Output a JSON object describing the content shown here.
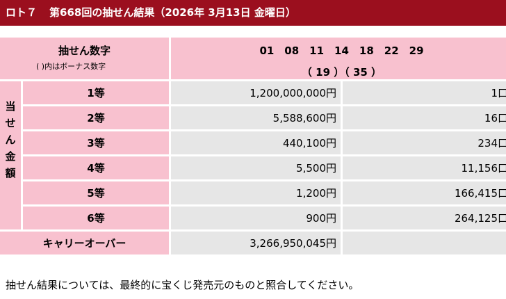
{
  "header": {
    "game": "ロト７",
    "title": "第668回の抽せん結果（2026年 3月13日 金曜日）"
  },
  "numbers": {
    "label": "抽せん数字",
    "note": "( )内はボーナス数字",
    "main": "01　08　11　14　18　22　29",
    "bonus": "（ 19 ）（ 35 ）"
  },
  "prize_side_label": [
    "当",
    "せ",
    "ん",
    "金",
    "額"
  ],
  "prizes": [
    {
      "grade": "1等",
      "amount": "1,200,000,000円",
      "count": "1口"
    },
    {
      "grade": "2等",
      "amount": "5,588,600円",
      "count": "16口"
    },
    {
      "grade": "3等",
      "amount": "440,100円",
      "count": "234口"
    },
    {
      "grade": "4等",
      "amount": "5,500円",
      "count": "11,156口"
    },
    {
      "grade": "5等",
      "amount": "1,200円",
      "count": "166,415口"
    },
    {
      "grade": "6等",
      "amount": "900円",
      "count": "264,125口"
    }
  ],
  "carryover": {
    "label": "キャリーオーバー",
    "amount": "3,266,950,045円"
  },
  "footer": {
    "note": "抽せん結果については、最終的に宝くじ発売元のものと照合してください。"
  },
  "colors": {
    "header_bg": "#9b0f1e",
    "label_bg": "#f8c1cf",
    "value_bg": "#e6e6e6"
  }
}
